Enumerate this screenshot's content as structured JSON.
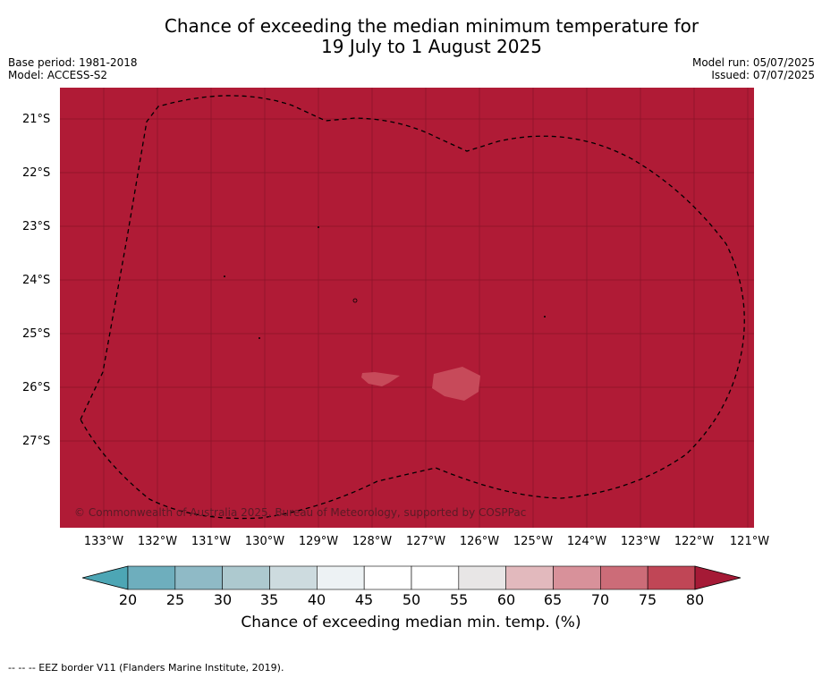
{
  "title": {
    "line1": "Chance of exceeding the median minimum temperature for",
    "line2": "19 July to 1 August 2025"
  },
  "meta": {
    "base_period": "Base period: 1981-2018",
    "model": "Model: ACCESS-S2",
    "model_run": "Model run: 05/07/2025",
    "issued": "Issued: 07/07/2025"
  },
  "map": {
    "background_color": "#b01b36",
    "patch_color": "#c74a5a",
    "copyright": "© Commonwealth of Australia 2025, Bureau of Meteorology, supported by COSPPac",
    "lat_ticks": [
      "21°S",
      "22°S",
      "23°S",
      "24°S",
      "25°S",
      "26°S",
      "27°S"
    ],
    "lon_ticks": [
      "133°W",
      "132°W",
      "131°W",
      "130°W",
      "129°W",
      "128°W",
      "127°W",
      "126°W",
      "125°W",
      "124°W",
      "123°W",
      "122°W",
      "121°W"
    ]
  },
  "colorbar": {
    "labels": [
      "20",
      "25",
      "30",
      "35",
      "40",
      "45",
      "50",
      "55",
      "60",
      "65",
      "70",
      "75",
      "80"
    ],
    "colors": [
      "#6eaebd",
      "#8fbac6",
      "#adc9cf",
      "#cddbdf",
      "#edf2f4",
      "#ffffff",
      "#ffffff",
      "#e8e6e6",
      "#e2b9bd",
      "#d8919a",
      "#cc6c78",
      "#c04656"
    ],
    "under_color": "#4da6b5",
    "over_color": "#a51a36",
    "title": "Chance of exceeding median min. temp. (%)"
  },
  "footer": "--  --  -- EEZ border V11 (Flanders Marine Institute, 2019)."
}
